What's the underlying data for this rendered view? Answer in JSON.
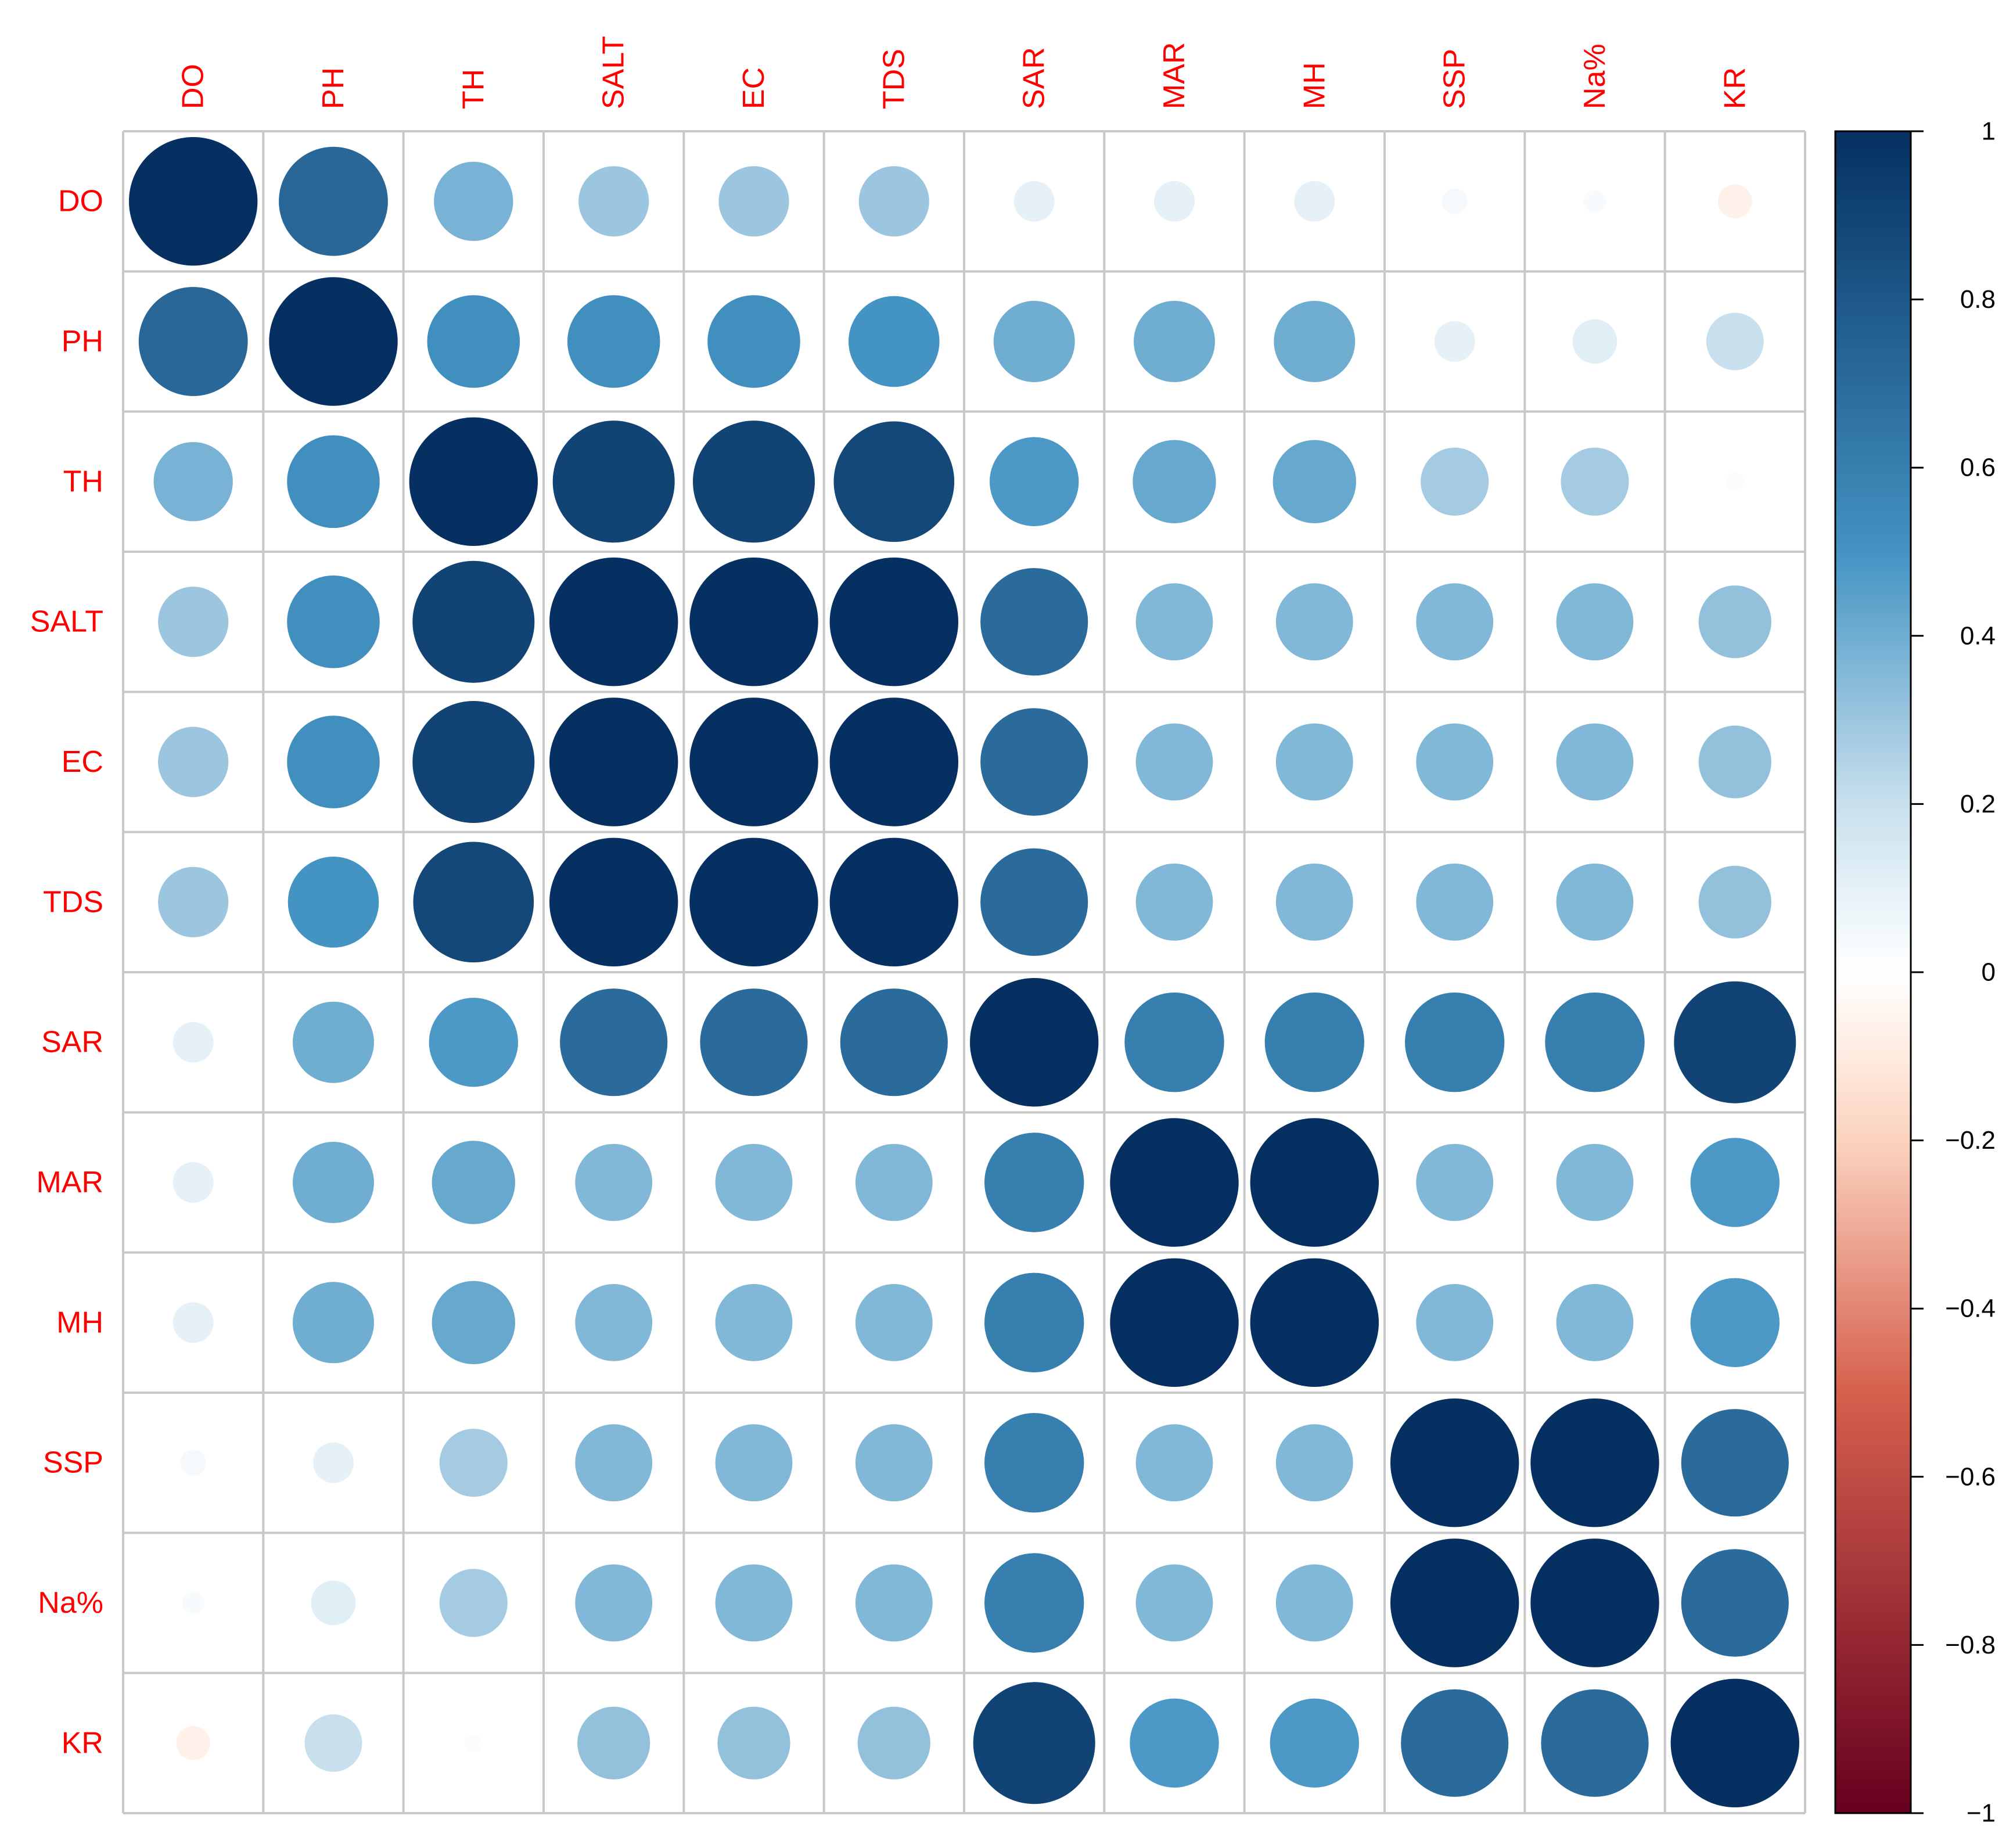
{
  "chart_data": {
    "type": "heatmap",
    "style": "correlation circles",
    "variables": [
      "DO",
      "PH",
      "TH",
      "SALT",
      "EC",
      "TDS",
      "SAR",
      "MAR",
      "MH",
      "SSP",
      "Na%",
      "KR"
    ],
    "matrix": [
      [
        1.0,
        0.72,
        0.38,
        0.3,
        0.3,
        0.3,
        0.1,
        0.1,
        0.1,
        0.04,
        0.03,
        -0.07
      ],
      [
        0.72,
        1.0,
        0.52,
        0.52,
        0.52,
        0.5,
        0.4,
        0.4,
        0.4,
        0.1,
        0.12,
        0.2
      ],
      [
        0.38,
        0.52,
        1.0,
        0.9,
        0.9,
        0.88,
        0.48,
        0.42,
        0.42,
        0.28,
        0.28,
        0.02
      ],
      [
        0.3,
        0.52,
        0.9,
        1.0,
        1.0,
        1.0,
        0.7,
        0.36,
        0.36,
        0.36,
        0.36,
        0.32
      ],
      [
        0.3,
        0.52,
        0.9,
        1.0,
        1.0,
        1.0,
        0.7,
        0.36,
        0.36,
        0.36,
        0.36,
        0.32
      ],
      [
        0.3,
        0.5,
        0.88,
        1.0,
        1.0,
        1.0,
        0.7,
        0.36,
        0.36,
        0.36,
        0.36,
        0.32
      ],
      [
        0.1,
        0.4,
        0.48,
        0.7,
        0.7,
        0.7,
        1.0,
        0.6,
        0.6,
        0.6,
        0.6,
        0.9
      ],
      [
        0.1,
        0.4,
        0.42,
        0.36,
        0.36,
        0.36,
        0.6,
        1.0,
        1.0,
        0.36,
        0.36,
        0.48
      ],
      [
        0.1,
        0.4,
        0.42,
        0.36,
        0.36,
        0.36,
        0.6,
        1.0,
        1.0,
        0.36,
        0.36,
        0.48
      ],
      [
        0.04,
        0.1,
        0.28,
        0.36,
        0.36,
        0.36,
        0.6,
        0.36,
        0.36,
        1.0,
        1.0,
        0.7
      ],
      [
        0.03,
        0.12,
        0.28,
        0.36,
        0.36,
        0.36,
        0.6,
        0.36,
        0.36,
        1.0,
        1.0,
        0.7
      ],
      [
        -0.07,
        0.2,
        0.02,
        0.32,
        0.32,
        0.32,
        0.9,
        0.48,
        0.48,
        0.7,
        0.7,
        1.0
      ]
    ],
    "colorbar": {
      "range": [
        -1,
        1
      ],
      "ticks": [
        1,
        0.8,
        0.6,
        0.4,
        0.2,
        0,
        -0.2,
        -0.4,
        -0.6,
        -0.8,
        -1
      ],
      "tick_labels": [
        "1",
        "0.8",
        "0.6",
        "0.4",
        "0.2",
        "0",
        "−0.2",
        "−0.4",
        "−0.6",
        "−0.8",
        "−1"
      ],
      "colors": {
        "neg_extreme": "#67001f",
        "neg_mid": "#d6604d",
        "neg_light": "#fddbc7",
        "zero": "#ffffff",
        "pos_light": "#d1e5f0",
        "pos_mid": "#4393c3",
        "pos_extreme": "#053061"
      }
    },
    "label_color": "#ff0000",
    "grid": true
  }
}
